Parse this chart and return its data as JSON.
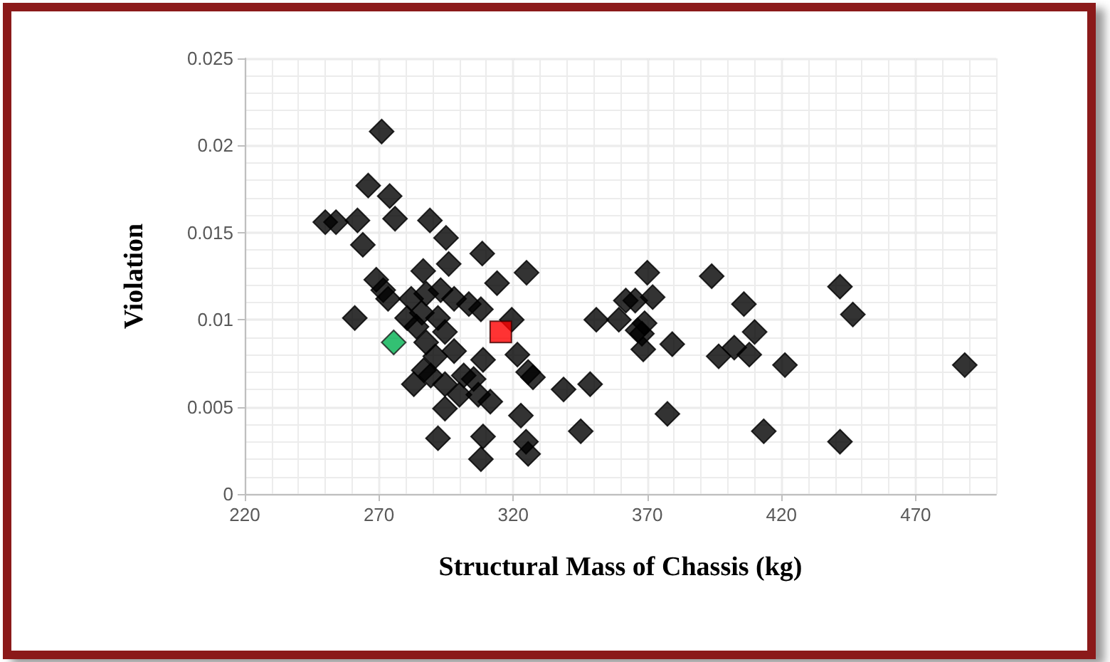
{
  "chart_data": {
    "type": "scatter",
    "xlabel": "Structural Mass of Chassis (kg)",
    "ylabel": "Violation",
    "xlim": [
      220,
      500
    ],
    "xticks": [
      220,
      270,
      320,
      370,
      420,
      470
    ],
    "ylim": [
      0,
      0.025
    ],
    "yticks": [
      0,
      0.005,
      0.01,
      0.015,
      0.02,
      0.025
    ],
    "grid": true,
    "marker": "diamond",
    "series": [
      {
        "color": "#000000",
        "x": [
          271,
          266,
          274,
          276,
          250,
          254,
          262,
          264,
          289,
          295,
          308.5,
          286.5,
          296,
          314,
          269,
          271.6,
          273.4,
          261,
          282,
          287.6,
          293,
          298,
          303.5,
          308,
          280.5,
          286,
          292,
          284,
          294.6,
          287.6,
          291,
          298,
          286.7,
          289.3,
          283,
          294.6,
          301.6,
          305.3,
          308.8,
          300,
          307,
          311.5,
          294.6,
          292,
          308.8,
          308,
          325,
          319.5,
          321.6,
          325.6,
          327.4,
          322.9,
          324.8,
          325.6,
          338.8,
          348.7,
          345.2,
          351,
          359.4,
          362,
          365.5,
          370,
          372,
          369,
          368,
          368.5,
          366.4,
          379.3,
          377.5,
          394,
          406,
          410,
          396.6,
          402.4,
          408,
          421.3,
          413.4,
          441.8,
          446.6,
          441.8,
          488.3
        ],
        "values": [
          0.0208,
          0.0177,
          0.0171,
          0.0158,
          0.0156,
          0.0156,
          0.0157,
          0.0143,
          0.0157,
          0.0147,
          0.0138,
          0.0128,
          0.0132,
          0.0121,
          0.0123,
          0.0117,
          0.0112,
          0.0101,
          0.0112,
          0.0115,
          0.0117,
          0.0112,
          0.0109,
          0.0106,
          0.0101,
          0.0104,
          0.0101,
          0.0096,
          0.0093,
          0.0087,
          0.0079,
          0.0082,
          0.0071,
          0.0068,
          0.0063,
          0.0063,
          0.0068,
          0.0066,
          0.0077,
          0.0057,
          0.0057,
          0.0053,
          0.0049,
          0.0032,
          0.0033,
          0.002,
          0.0127,
          0.01,
          0.008,
          0.007,
          0.0067,
          0.0045,
          0.003,
          0.0023,
          0.006,
          0.0063,
          0.0036,
          0.01,
          0.01,
          0.0111,
          0.0111,
          0.0127,
          0.0113,
          0.0098,
          0.0092,
          0.0083,
          0.0094,
          0.0086,
          0.0046,
          0.0125,
          0.0109,
          0.0093,
          0.0079,
          0.0084,
          0.008,
          0.0074,
          0.0036,
          0.0119,
          0.0103,
          0.003,
          0.0074
        ]
      },
      {
        "color": "#00b050",
        "x": [
          275.5
        ],
        "values": [
          0.0087
        ]
      },
      {
        "color": "#ff0000",
        "marker": "square",
        "x": [
          315.4
        ],
        "values": [
          0.0093
        ]
      }
    ]
  }
}
